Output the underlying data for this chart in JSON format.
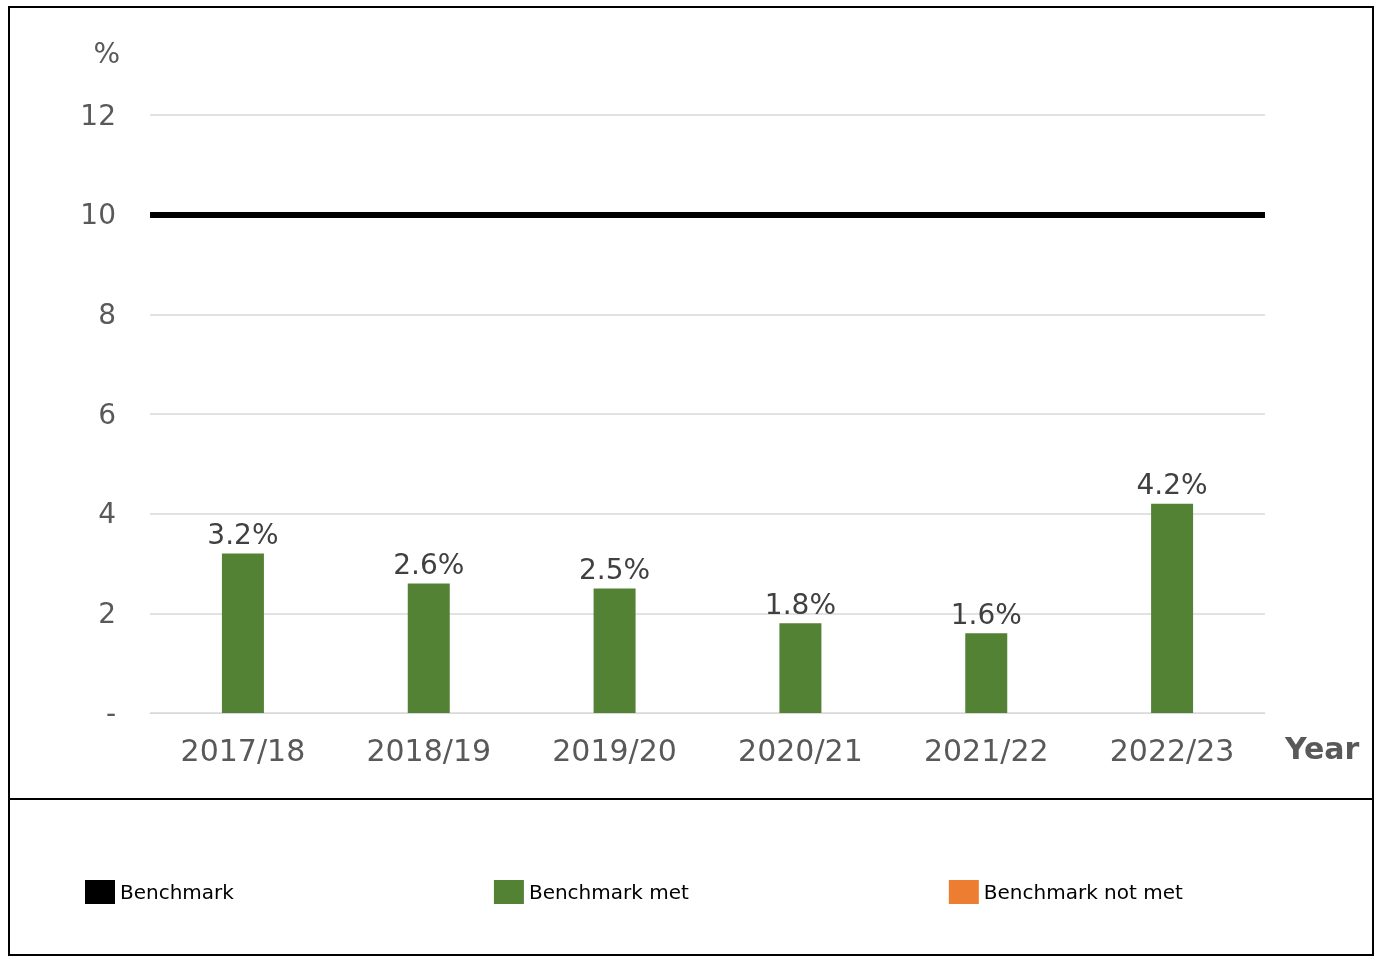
{
  "chart_data": {
    "type": "bar",
    "xlabel": "Year",
    "ylabel": "%",
    "categories": [
      "2017/18",
      "2018/19",
      "2019/20",
      "2020/21",
      "2021/22",
      "2022/23"
    ],
    "series": [
      {
        "name": "Benchmark met",
        "color": "#548235",
        "values": [
          3.2,
          2.6,
          2.5,
          1.8,
          1.6,
          4.2
        ],
        "value_labels": [
          "3.2%",
          "2.6%",
          "2.5%",
          "1.8%",
          "1.6%",
          "4.2%"
        ]
      },
      {
        "name": "Benchmark not met",
        "color": "#ed7d31",
        "values": [
          null,
          null,
          null,
          null,
          null,
          null
        ]
      }
    ],
    "ref_lines": [
      {
        "axis": "y",
        "value": 10,
        "label": "Benchmark",
        "color": "#000000"
      }
    ],
    "ylim": [
      0,
      12
    ],
    "yticks": [
      {
        "value": 0,
        "label": "-"
      },
      2,
      4,
      6,
      8,
      10,
      12
    ],
    "grid": "y",
    "legend": "bottom"
  }
}
